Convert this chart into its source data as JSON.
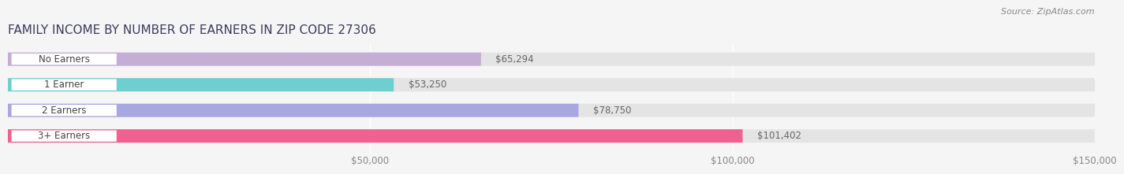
{
  "title": "FAMILY INCOME BY NUMBER OF EARNERS IN ZIP CODE 27306",
  "source": "Source: ZipAtlas.com",
  "categories": [
    "No Earners",
    "1 Earner",
    "2 Earners",
    "3+ Earners"
  ],
  "values": [
    65294,
    53250,
    78750,
    101402
  ],
  "bar_colors": [
    "#c4aed4",
    "#6dcfcf",
    "#a8a8e0",
    "#f06090"
  ],
  "value_labels": [
    "$65,294",
    "$53,250",
    "$78,750",
    "$101,402"
  ],
  "xlim": [
    0,
    150000
  ],
  "xticks": [
    50000,
    100000,
    150000
  ],
  "xtick_labels": [
    "$50,000",
    "$100,000",
    "$150,000"
  ],
  "background_color": "#f5f5f5",
  "bar_bg_color": "#e4e4e4",
  "title_fontsize": 11,
  "source_fontsize": 8,
  "label_fontsize": 8.5,
  "value_fontsize": 8.5,
  "tick_fontsize": 8.5,
  "title_color": "#3a3a5c",
  "source_color": "#888888",
  "label_text_color": "#444444",
  "value_text_color": "#666666"
}
